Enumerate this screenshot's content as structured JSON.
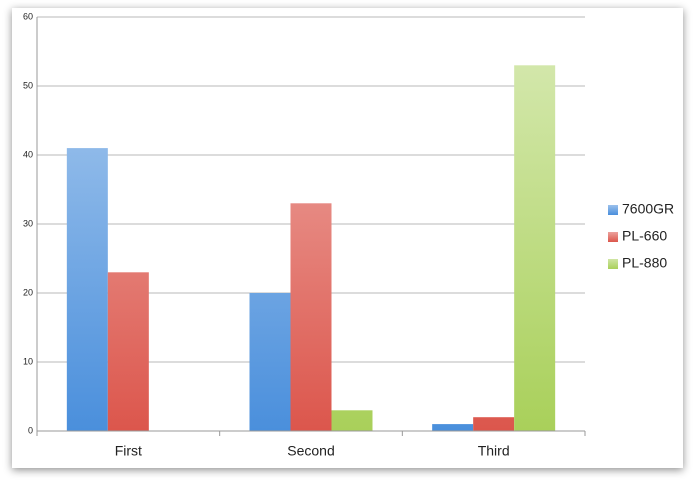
{
  "chart_data": {
    "type": "bar",
    "categories": [
      "First",
      "Second",
      "Third"
    ],
    "series": [
      {
        "name": "7600GR",
        "color": "#4a8fdc",
        "values": [
          41,
          20,
          1
        ]
      },
      {
        "name": "PL-660",
        "color": "#dc564c",
        "values": [
          23,
          33,
          2
        ]
      },
      {
        "name": "PL-880",
        "color": "#a9d05a",
        "values": [
          0,
          3,
          53
        ]
      }
    ],
    "ylim": [
      0,
      60
    ],
    "yticks": [
      0,
      10,
      20,
      30,
      40,
      50,
      60
    ],
    "grid": true,
    "legend": "right"
  }
}
